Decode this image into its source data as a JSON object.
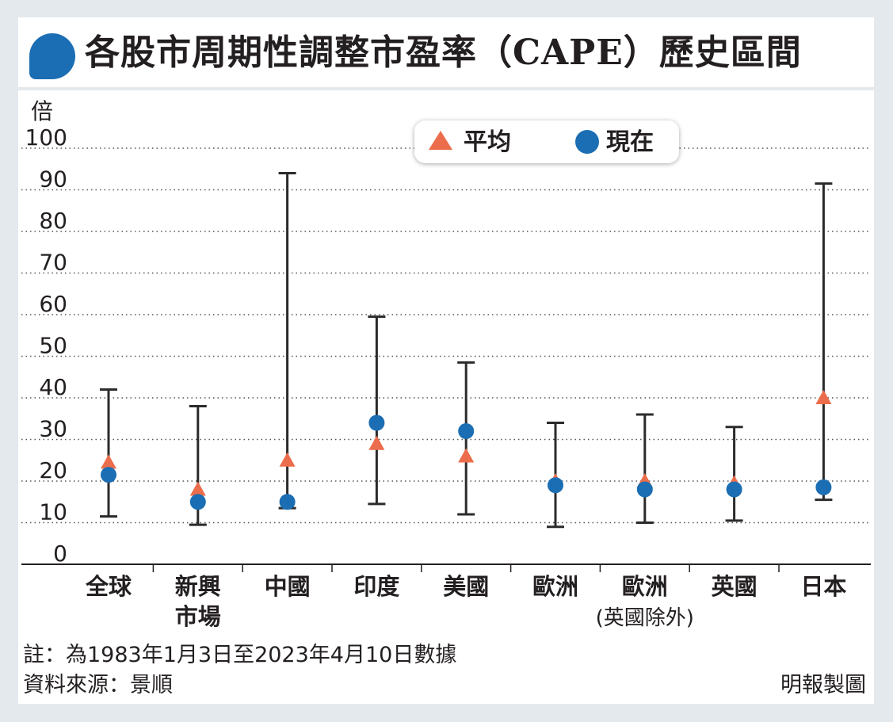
{
  "title": "各股市周期性調整市盈率（CAPE）歷史區間",
  "footnote": "註：為1983年1月3日至2023年4月10日數據",
  "source": "資料來源：景順",
  "credit": "明報製圖",
  "colors": {
    "average": "#ec6d4b",
    "current": "#1b6eb3",
    "range": "#2b2b2b",
    "title_bullet": "#1b6eb3"
  },
  "chart_data": {
    "type": "scatter",
    "title": "各股市周期性調整市盈率（CAPE）歷史區間",
    "ylabel": "倍",
    "ylim": [
      0,
      100
    ],
    "yticks": [
      "0",
      "10",
      "20",
      "30",
      "40",
      "50",
      "60",
      "70",
      "80",
      "90",
      "100"
    ],
    "grid": true,
    "legend_position": "top-center",
    "legend": [
      {
        "name": "平均",
        "marker": "triangle"
      },
      {
        "name": "現在",
        "marker": "circle"
      }
    ],
    "categories": [
      [
        "全球"
      ],
      [
        "新興",
        "市場"
      ],
      [
        "中國"
      ],
      [
        "印度"
      ],
      [
        "美國"
      ],
      [
        "歐洲"
      ],
      [
        "歐洲",
        "(英國除外)"
      ],
      [
        "英國"
      ],
      [
        "日本"
      ]
    ],
    "range_high": [
      42,
      38,
      94,
      59.5,
      48.5,
      34,
      36,
      33,
      91.5
    ],
    "range_low": [
      11.5,
      9.5,
      13.5,
      14.5,
      12,
      9,
      10,
      10.5,
      15.5
    ],
    "series": [
      {
        "name": "平均",
        "values": [
          24.5,
          18,
          25,
          29,
          26,
          20,
          20,
          19.5,
          40
        ]
      },
      {
        "name": "現在",
        "values": [
          21.5,
          15,
          15,
          34,
          32,
          19,
          18,
          18,
          18.5
        ]
      }
    ]
  }
}
